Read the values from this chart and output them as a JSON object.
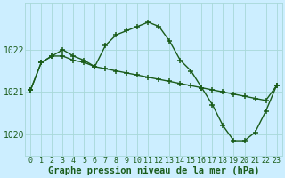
{
  "series1": {
    "x": [
      0,
      1,
      2,
      3,
      4,
      5,
      6,
      7,
      8,
      9,
      10,
      11,
      12,
      13,
      14,
      15,
      16,
      17,
      18,
      19,
      20,
      21,
      22,
      23
    ],
    "y": [
      1021.05,
      1021.7,
      1021.85,
      1021.85,
      1021.75,
      1021.7,
      1021.6,
      1021.55,
      1021.5,
      1021.45,
      1021.4,
      1021.35,
      1021.3,
      1021.25,
      1021.2,
      1021.15,
      1021.1,
      1021.05,
      1021.0,
      1020.95,
      1020.9,
      1020.85,
      1020.8,
      1021.15
    ]
  },
  "series2": {
    "x": [
      0,
      1,
      2,
      3,
      4,
      5,
      6,
      7,
      8,
      9,
      10,
      11,
      12,
      13,
      14,
      15,
      16,
      17,
      18,
      19,
      20,
      21,
      22,
      23
    ],
    "y": [
      1021.05,
      1021.7,
      1021.85,
      1022.0,
      1021.85,
      1021.75,
      1021.6,
      1022.1,
      1022.35,
      1022.45,
      1022.55,
      1022.65,
      1022.55,
      1022.2,
      1021.75,
      1021.5,
      1021.1,
      1020.7,
      1020.2,
      1019.85,
      1019.85,
      1020.05,
      1020.55,
      1021.15
    ]
  },
  "line_color": "#1a5c1a",
  "marker": "+",
  "markersize": 4,
  "linewidth": 1.0,
  "bg_color": "#cceeff",
  "grid_color": "#a8d8d8",
  "ylabel_ticks": [
    1020,
    1021,
    1022
  ],
  "xlabel": "Graphe pression niveau de la mer (hPa)",
  "xlim": [
    -0.5,
    23.5
  ],
  "ylim": [
    1019.5,
    1023.1
  ],
  "xtick_labels": [
    "0",
    "1",
    "2",
    "3",
    "4",
    "5",
    "6",
    "7",
    "8",
    "9",
    "10",
    "11",
    "12",
    "13",
    "14",
    "15",
    "16",
    "17",
    "18",
    "19",
    "20",
    "21",
    "22",
    "23"
  ],
  "xlabel_fontsize": 7.5,
  "tick_fontsize": 6,
  "ytick_fontsize": 7
}
